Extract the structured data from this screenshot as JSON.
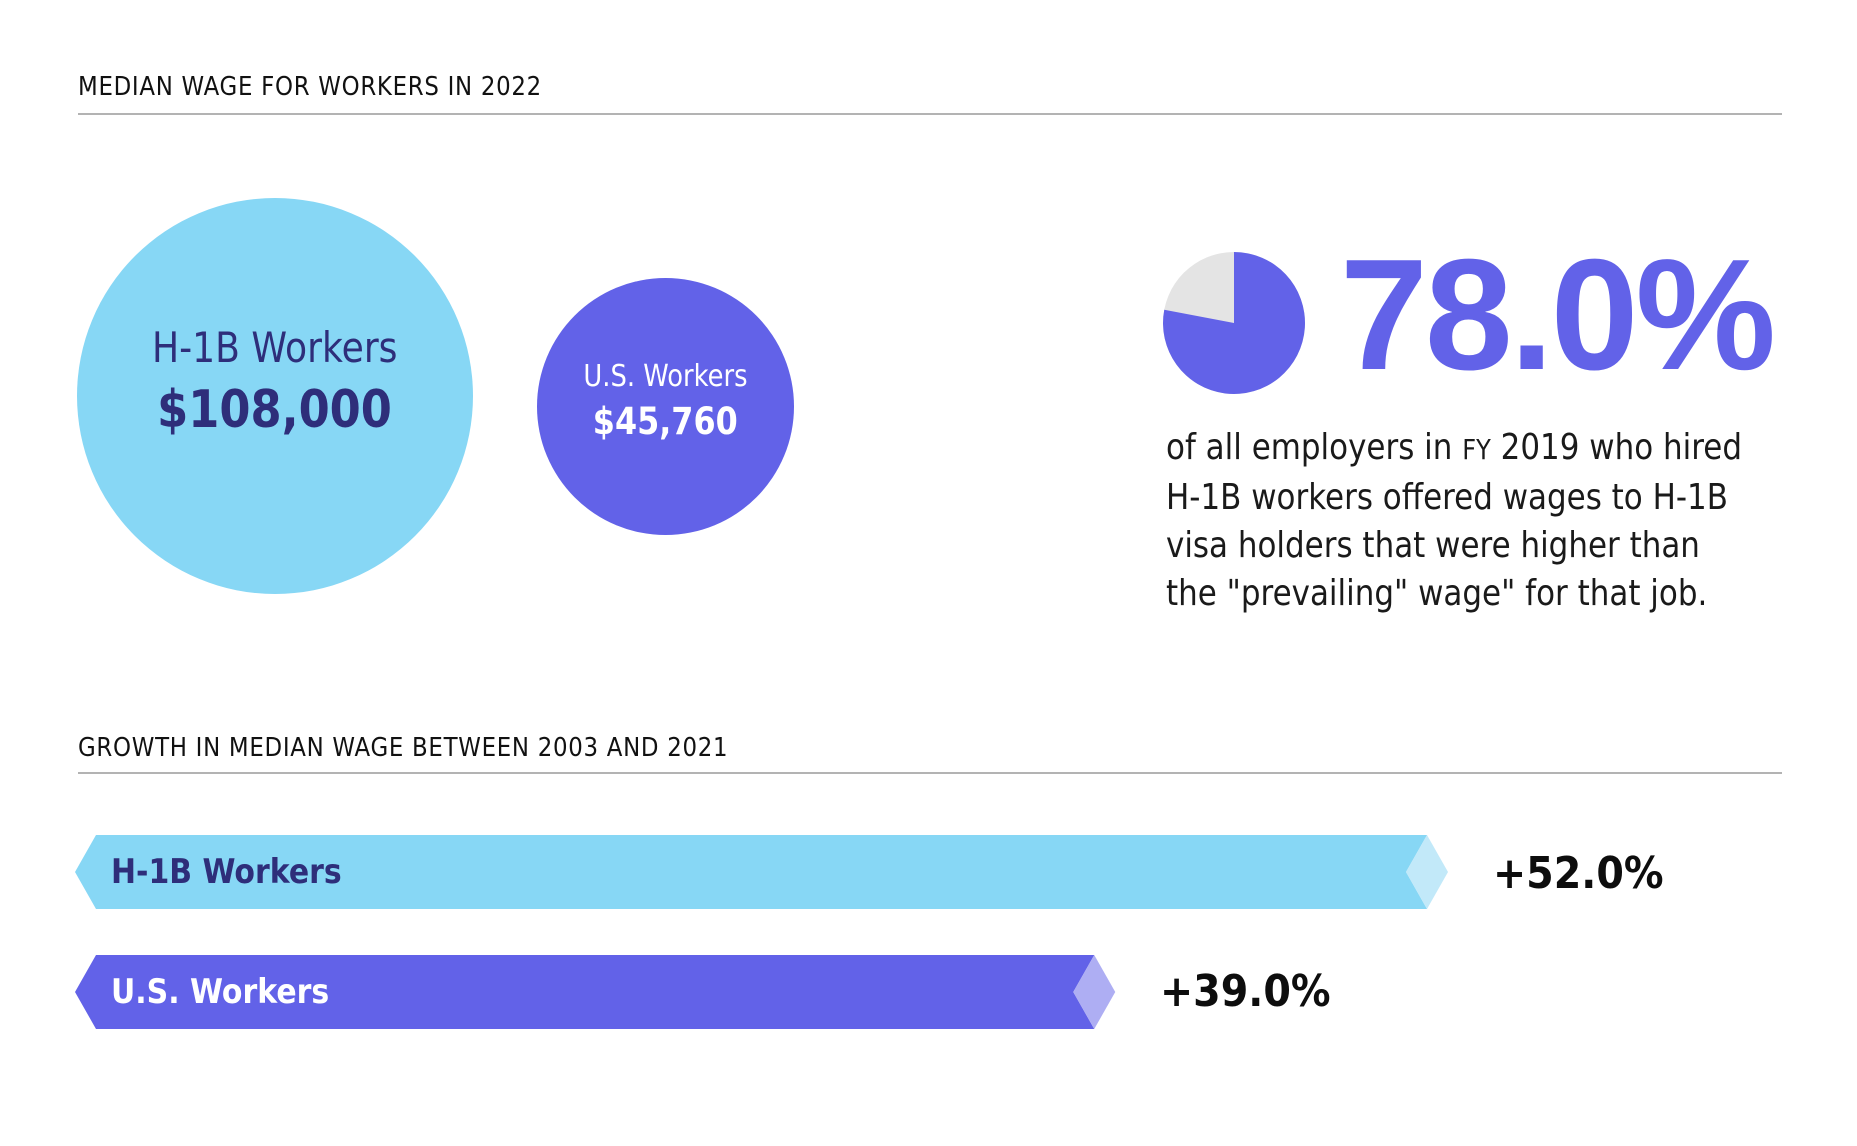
{
  "sections": {
    "wage_title": "MEDIAN WAGE FOR WORKERS IN 2022",
    "growth_title": "GROWTH IN MEDIAN WAGE BETWEEN 2003 AND 2021"
  },
  "colors": {
    "h1b": "#87d7f5",
    "h1b_tip": "#c2e9f9",
    "h1b_text": "#2e2e7a",
    "us": "#6262e8",
    "us_tip": "#aeaef3",
    "pie_rest": "#e4e4e4",
    "rule": "#b3b3b3"
  },
  "wage_circles": [
    {
      "label": "H-1B Workers",
      "value": "$108,000"
    },
    {
      "label": "U.S. Workers",
      "value": "$45,760"
    }
  ],
  "stat": {
    "percent": "78.0%",
    "lines": [
      {
        "pre": "of all employers in ",
        "caps": "FY",
        "post": " 2019 who hired"
      },
      {
        "pre": "H-1B workers offered wages to H-1B",
        "caps": "",
        "post": ""
      },
      {
        "pre": "visa holders that were higher than",
        "caps": "",
        "post": ""
      },
      {
        "pre": "the \"prevailing\" wage\" for that job.",
        "caps": "",
        "post": ""
      }
    ]
  },
  "chart_data": [
    {
      "type": "bubble",
      "title": "MEDIAN WAGE FOR WORKERS IN 2022",
      "categories": [
        "H-1B Workers",
        "U.S. Workers"
      ],
      "values": [
        108000,
        45760
      ],
      "value_labels": [
        "$108,000",
        "$45,760"
      ]
    },
    {
      "type": "pie",
      "title": "",
      "categories": [
        "Offered wages higher than prevailing wage",
        "Other"
      ],
      "values": [
        78.0,
        22.0
      ],
      "data_label": "78.0%"
    },
    {
      "type": "bar",
      "orientation": "horizontal",
      "title": "GROWTH IN MEDIAN WAGE BETWEEN 2003 AND 2021",
      "categories": [
        "H-1B Workers",
        "U.S. Workers"
      ],
      "values": [
        52.0,
        39.0
      ],
      "value_labels": [
        "+52.0%",
        "+39.0%"
      ],
      "unit": "%",
      "xlim": [
        0,
        52.0
      ],
      "grid": false
    }
  ]
}
